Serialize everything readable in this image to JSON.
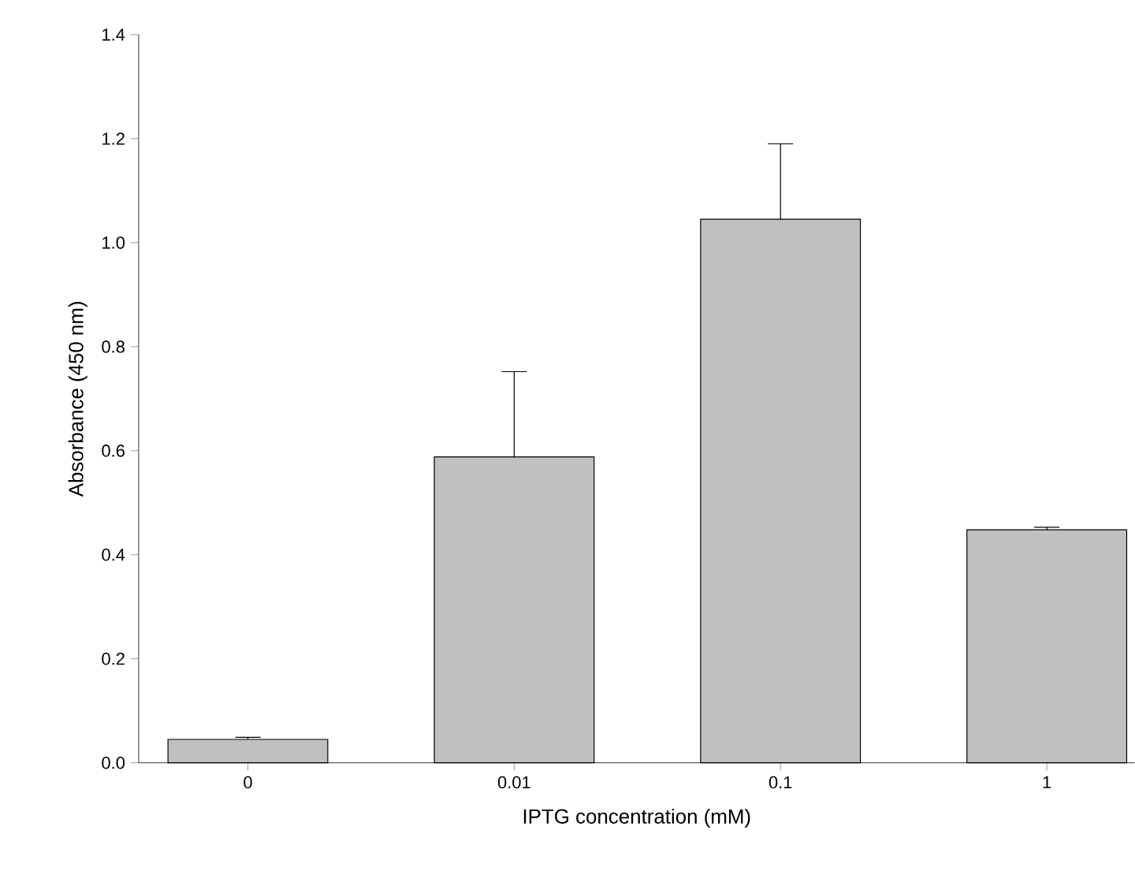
{
  "chart_data": {
    "type": "bar",
    "xlabel": "IPTG concentration (mM)",
    "ylabel": "Absorbance (450 nm)",
    "categories": [
      "0",
      "0.01",
      "0.1",
      "1"
    ],
    "values": [
      0.045,
      0.588,
      1.045,
      0.448
    ],
    "errors": [
      [
        0.045,
        0.049
      ],
      [
        0.588,
        0.752
      ],
      [
        1.045,
        1.19
      ],
      [
        0.448,
        0.453
      ]
    ],
    "color": "#c0c0c0",
    "ylim": [
      0,
      1.4
    ],
    "yticks": [
      {
        "value": 0,
        "label": "0.0"
      },
      {
        "value": 0.2,
        "label": "0.2"
      },
      {
        "value": 0.4,
        "label": "0.4"
      },
      {
        "value": 0.6,
        "label": "0.6"
      },
      {
        "value": 0.8,
        "label": "0.8"
      },
      {
        "value": 1.0,
        "label": "1.0"
      },
      {
        "value": 1.2,
        "label": "1.2"
      },
      {
        "value": 1.4,
        "label": "1.4"
      }
    ],
    "grid": false
  }
}
